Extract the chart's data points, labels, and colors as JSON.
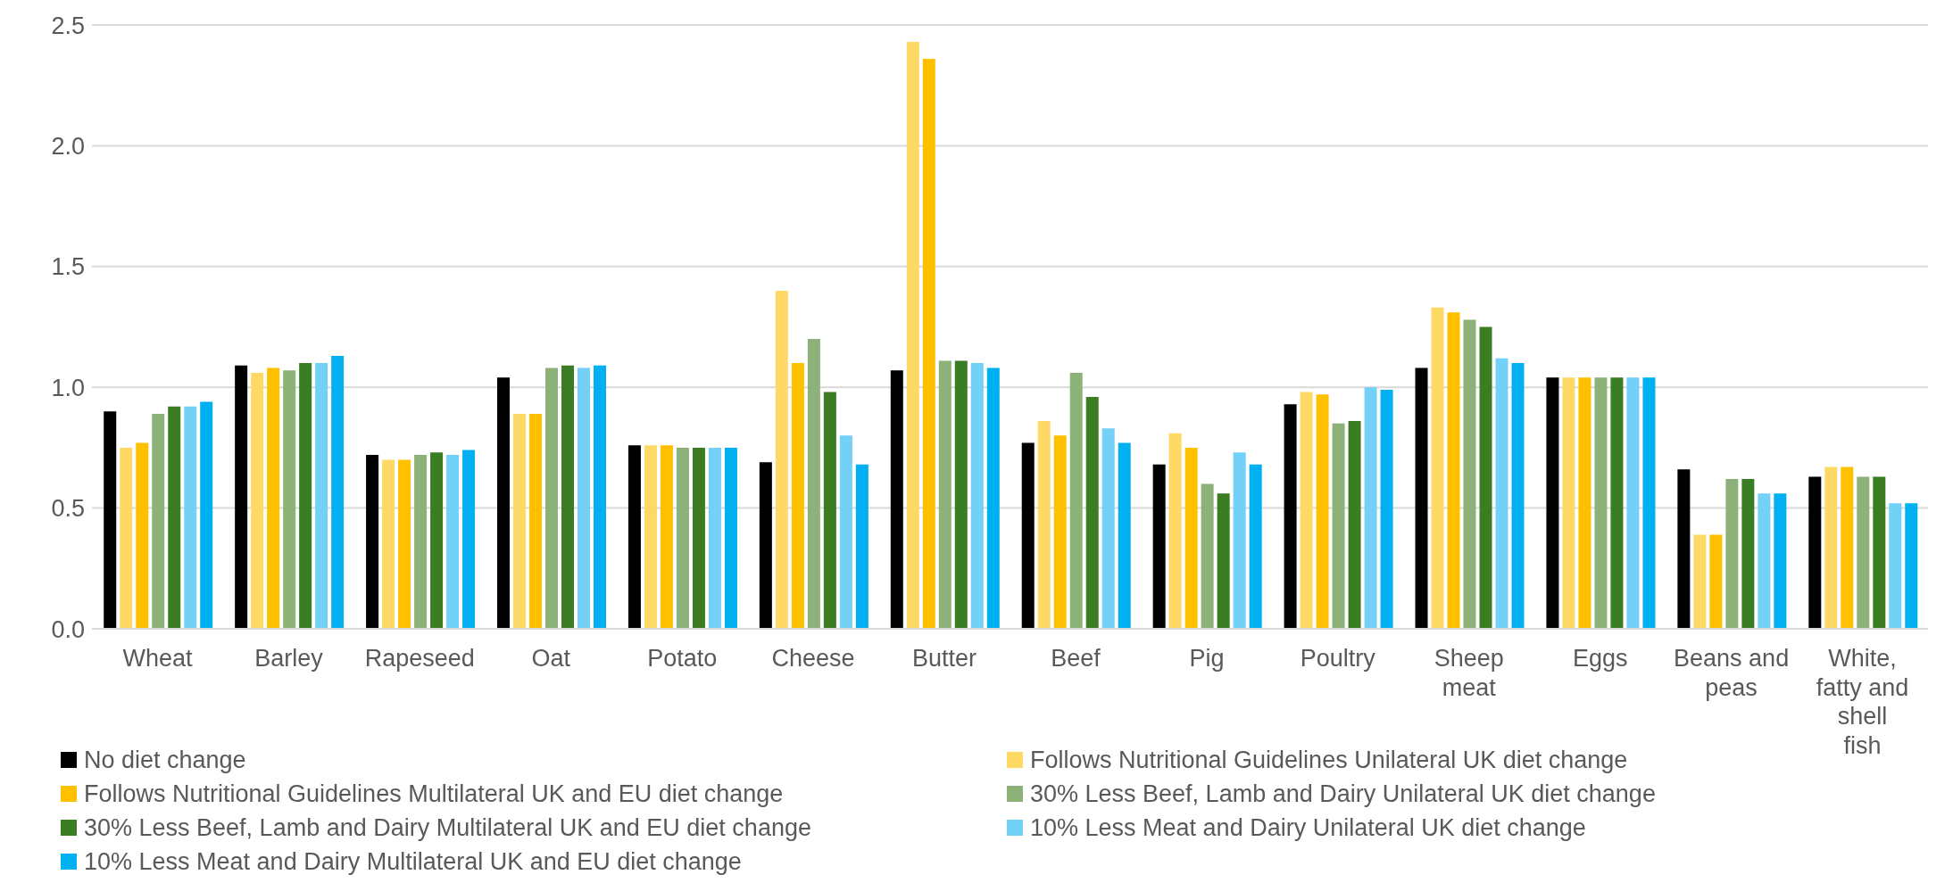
{
  "chart_data": {
    "type": "bar",
    "categories": [
      "Wheat",
      "Barley",
      "Rapeseed",
      "Oat",
      "Potato",
      "Cheese",
      "Butter",
      "Beef",
      "Pig",
      "Poultry",
      "Sheep meat",
      "Eggs",
      "Beans and peas",
      "White, fatty and shell fish"
    ],
    "series": [
      {
        "name": "No diet change",
        "color": "#000000",
        "values": [
          0.9,
          1.09,
          0.72,
          1.04,
          0.76,
          0.69,
          1.07,
          0.77,
          0.68,
          0.93,
          1.08,
          1.04,
          0.66,
          0.63
        ]
      },
      {
        "name": "Follows Nutritional Guidelines Unilateral UK diet change",
        "color": "#ffd966",
        "values": [
          0.75,
          1.06,
          0.7,
          0.89,
          0.76,
          1.4,
          2.43,
          0.86,
          0.81,
          0.98,
          1.33,
          1.04,
          0.39,
          0.67
        ]
      },
      {
        "name": "Follows Nutritional Guidelines Multilateral UK and EU diet change",
        "color": "#ffc000",
        "values": [
          0.77,
          1.08,
          0.7,
          0.89,
          0.76,
          1.1,
          2.36,
          0.8,
          0.75,
          0.97,
          1.31,
          1.04,
          0.39,
          0.67
        ]
      },
      {
        "name": "30% Less Beef, Lamb and Dairy Unilateral UK diet change",
        "color": "#8cb27a",
        "values": [
          0.89,
          1.07,
          0.72,
          1.08,
          0.75,
          1.2,
          1.11,
          1.06,
          0.6,
          0.85,
          1.28,
          1.04,
          0.62,
          0.63
        ]
      },
      {
        "name": "30% Less Beef, Lamb and Dairy Multilateral UK and EU diet change",
        "color": "#3a7d22",
        "values": [
          0.92,
          1.1,
          0.73,
          1.09,
          0.75,
          0.98,
          1.11,
          0.96,
          0.56,
          0.86,
          1.25,
          1.04,
          0.62,
          0.63
        ]
      },
      {
        "name": "10% Less Meat and Dairy Unilateral UK diet change",
        "color": "#73d0f6",
        "values": [
          0.92,
          1.1,
          0.72,
          1.08,
          0.75,
          0.8,
          1.1,
          0.83,
          0.73,
          1.0,
          1.12,
          1.04,
          0.56,
          0.52
        ]
      },
      {
        "name": "10% Less Meat and Dairy Multilateral UK and EU diet change",
        "color": "#00b0f0",
        "values": [
          0.94,
          1.13,
          0.74,
          1.09,
          0.75,
          0.68,
          1.08,
          0.77,
          0.68,
          0.99,
          1.1,
          1.04,
          0.56,
          0.52
        ]
      }
    ],
    "ylim": [
      0,
      2.5
    ],
    "yticks": [
      {
        "value": 0,
        "label": "0.0"
      },
      {
        "value": 0.5,
        "label": "0.5"
      },
      {
        "value": 1,
        "label": "1.0"
      },
      {
        "value": 1.5,
        "label": "1.5"
      },
      {
        "value": 2,
        "label": "2.0"
      },
      {
        "value": 2.5,
        "label": "2.5"
      }
    ],
    "grid": "y",
    "legend": "bottom"
  }
}
